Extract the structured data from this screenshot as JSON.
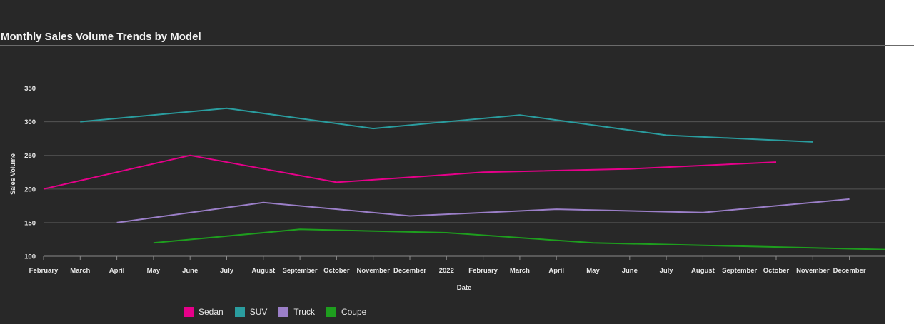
{
  "chart_data": {
    "type": "line",
    "title": "Monthly Sales Volume Trends by Model",
    "xlabel": "Date",
    "ylabel": "Sales Volume",
    "x_tick_labels": [
      "February",
      "March",
      "April",
      "May",
      "June",
      "July",
      "August",
      "September",
      "October",
      "November",
      "December",
      "2022",
      "February",
      "March",
      "April",
      "May",
      "June",
      "July",
      "August",
      "September",
      "October",
      "November",
      "December"
    ],
    "y_ticks": [
      100,
      150,
      200,
      250,
      300,
      350
    ],
    "ylim": [
      100,
      375
    ],
    "grid": true,
    "legend_position": "bottom",
    "series": [
      {
        "name": "Sedan",
        "color": "#e6008a",
        "x": [
          0,
          4,
          8,
          12,
          16,
          20
        ],
        "values": [
          200,
          250,
          210,
          225,
          230,
          240
        ]
      },
      {
        "name": "SUV",
        "color": "#2a9d9f",
        "x": [
          1,
          5,
          9,
          13,
          17,
          21
        ],
        "values": [
          300,
          320,
          290,
          310,
          280,
          270
        ]
      },
      {
        "name": "Truck",
        "color": "#9b7fc8",
        "x": [
          2,
          6,
          10,
          14,
          18,
          22
        ],
        "values": [
          150,
          180,
          160,
          170,
          165,
          185
        ]
      },
      {
        "name": "Coupe",
        "color": "#1e9e1e",
        "x": [
          3,
          7,
          11,
          15,
          19,
          23
        ],
        "values": [
          120,
          140,
          135,
          120,
          115,
          110
        ]
      }
    ]
  }
}
